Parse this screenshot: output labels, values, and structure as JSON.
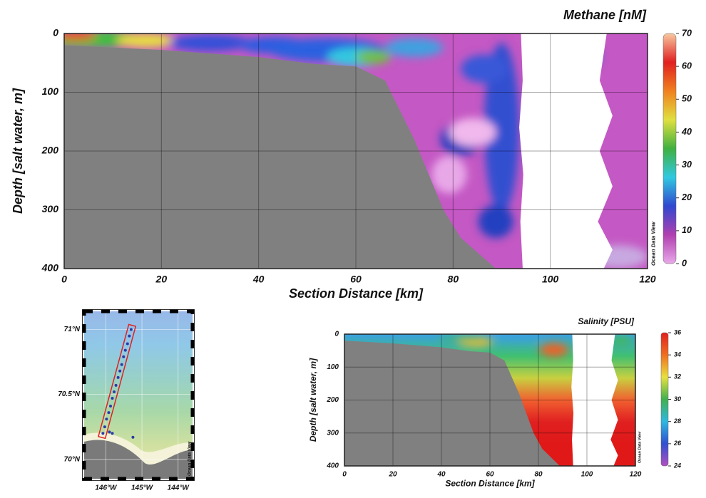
{
  "chart_data": [
    {
      "type": "section",
      "title": "Methane [nM]",
      "x_label": "Section Distance [km]",
      "y_label": "Depth [salt water, m]",
      "xlim": [
        0,
        120
      ],
      "xticks": [
        0,
        20,
        40,
        60,
        80,
        100,
        120
      ],
      "ylim": [
        0,
        400
      ],
      "yticks": [
        0,
        100,
        200,
        300,
        400
      ],
      "y_inverted": true,
      "grid": true,
      "colorbar": {
        "lim": [
          0,
          70
        ],
        "ticks": [
          0,
          10,
          20,
          30,
          40,
          50,
          60,
          70
        ],
        "colors": [
          "#e8a8e8",
          "#b040b0",
          "#3048d0",
          "#30c8e0",
          "#40b040",
          "#e0e040",
          "#f08020",
          "#e02020",
          "#f8c8a0"
        ]
      },
      "watermark": "Ocean Data View"
    },
    {
      "type": "map",
      "xlim": [
        -146.6,
        -143.6
      ],
      "xticks": [
        {
          "value": -146,
          "label": "146°W"
        },
        {
          "value": -145,
          "label": "145°W"
        },
        {
          "value": -144,
          "label": "144°W"
        }
      ],
      "ylim": [
        69.85,
        71.14
      ],
      "yticks": [
        {
          "value": 70,
          "label": "70°N"
        },
        {
          "value": 70.5,
          "label": "70.5°N"
        },
        {
          "value": 71,
          "label": "71°N"
        }
      ],
      "stations": {
        "color": "#2a3aa8",
        "x": [
          -146.08,
          -146.03,
          -145.98,
          -145.92,
          -145.87,
          -145.82,
          -145.77,
          -145.72,
          -145.66,
          -145.61,
          -145.56,
          -145.51,
          -145.46,
          -145.4,
          -145.35,
          -145.3,
          -145.9,
          -145.82,
          -145.25
        ],
        "y": [
          70.2,
          70.25,
          70.31,
          70.36,
          70.41,
          70.47,
          70.52,
          70.57,
          70.63,
          70.68,
          70.73,
          70.79,
          70.84,
          70.89,
          70.95,
          71.0,
          70.21,
          70.2,
          70.17
        ]
      },
      "watermark": "Ocean Data View"
    },
    {
      "type": "section",
      "title": "Salinity [PSU]",
      "x_label": "Section Distance [km]",
      "y_label": "Depth [salt water, m]",
      "xlim": [
        0,
        120
      ],
      "xticks": [
        0,
        20,
        40,
        60,
        80,
        100,
        120
      ],
      "ylim": [
        0,
        400
      ],
      "yticks": [
        0,
        100,
        200,
        300,
        400
      ],
      "y_inverted": true,
      "grid": true,
      "colorbar": {
        "lim": [
          24,
          36
        ],
        "ticks": [
          24,
          26,
          28,
          30,
          32,
          34,
          36
        ],
        "colors": [
          "#b050c0",
          "#3050d0",
          "#30b8e0",
          "#40b050",
          "#e8e040",
          "#f07020",
          "#e02020"
        ]
      },
      "watermark": "Ocean Data View"
    }
  ]
}
